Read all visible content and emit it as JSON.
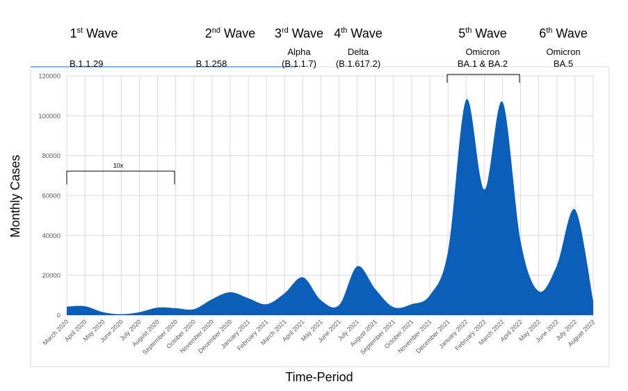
{
  "chart_data": {
    "type": "area",
    "title": "",
    "xlabel": "Time-Period",
    "ylabel": "Monthly Cases",
    "ylim": [
      0,
      120000
    ],
    "yticks": [
      0,
      20000,
      40000,
      60000,
      80000,
      100000,
      120000
    ],
    "grid": true,
    "color": "#0b5fb8",
    "categories": [
      "March 2020",
      "April 2020",
      "May 2020",
      "June 2020",
      "July 2020",
      "August 2020",
      "September 2020",
      "October 2020",
      "November 2020",
      "December 2020",
      "January 2021",
      "February 2021",
      "March 2021",
      "April 2021",
      "May 2021",
      "June 2021",
      "July 2021",
      "August 2021",
      "September 2021",
      "October 2021",
      "November 2021",
      "December 2021",
      "January 2022",
      "February 2022",
      "March 2022",
      "April 2022",
      "May 2022",
      "June 2022",
      "July 2022",
      "August 2022"
    ],
    "values": [
      4300,
      4500,
      1500,
      500,
      1500,
      3800,
      3500,
      3000,
      8000,
      11500,
      8500,
      5500,
      11000,
      19000,
      7500,
      5000,
      24500,
      13000,
      4000,
      5500,
      10000,
      32000,
      108000,
      63000,
      107000,
      37000,
      12000,
      25000,
      53000,
      7000
    ],
    "annotations": {
      "waves": [
        {
          "label": "1st Wave",
          "ord": "st",
          "num": "1",
          "variant": "B.1.1.29",
          "variant2": ""
        },
        {
          "label": "2nd Wave",
          "ord": "nd",
          "num": "2",
          "variant": "B.1.258",
          "variant2": ""
        },
        {
          "label": "3rd Wave",
          "ord": "rd",
          "num": "3",
          "variant": "Alpha",
          "variant2": "(B.1.1.7)"
        },
        {
          "label": "4th Wave",
          "ord": "th",
          "num": "4",
          "variant": "Delta",
          "variant2": "(B.1.617.2)"
        },
        {
          "label": "5th Wave",
          "ord": "th",
          "num": "5",
          "variant": "Omicron",
          "variant2": "BA.1 & BA.2"
        },
        {
          "label": "6th Wave",
          "ord": "th",
          "num": "6",
          "variant": "Omicron",
          "variant2": "BA.5"
        }
      ],
      "scale_note": "10x"
    }
  }
}
